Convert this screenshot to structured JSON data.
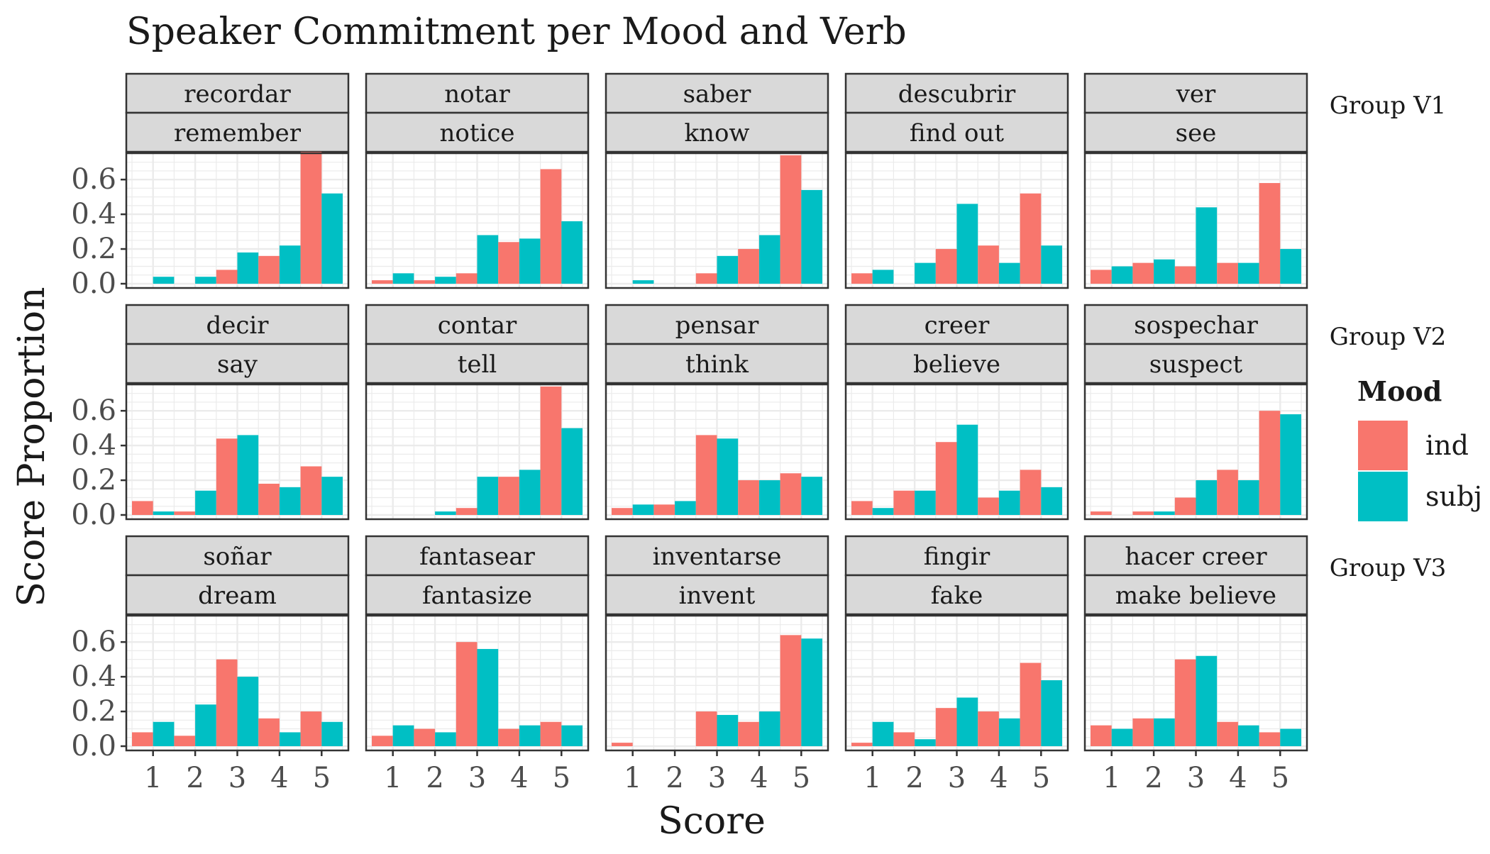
{
  "chart_data": {
    "type": "bar",
    "title": "Speaker Commitment per Mood and Verb",
    "xlabel": "Score",
    "ylabel": "Score Proportion",
    "x_categories": [
      "1",
      "2",
      "3",
      "4",
      "5"
    ],
    "y_ticks": [
      "0.0",
      "0.2",
      "0.4",
      "0.6"
    ],
    "ylim": [
      0,
      0.76
    ],
    "grid": true,
    "legend": {
      "title": "Mood",
      "position": "right",
      "entries": [
        {
          "name": "ind",
          "color": "#F8766D"
        },
        {
          "name": "subj",
          "color": "#00BFC4"
        }
      ]
    },
    "rows": [
      {
        "group": "Group V1",
        "panels": [
          {
            "spanish": "recordar",
            "english": "remember",
            "ind": [
              0.0,
              0.0,
              0.08,
              0.16,
              0.76
            ],
            "subj": [
              0.04,
              0.04,
              0.18,
              0.22,
              0.52
            ]
          },
          {
            "spanish": "notar",
            "english": "notice",
            "ind": [
              0.02,
              0.02,
              0.06,
              0.24,
              0.66
            ],
            "subj": [
              0.06,
              0.04,
              0.28,
              0.26,
              0.36
            ]
          },
          {
            "spanish": "saber",
            "english": "know",
            "ind": [
              0.0,
              0.0,
              0.06,
              0.2,
              0.74
            ],
            "subj": [
              0.02,
              0.0,
              0.16,
              0.28,
              0.54
            ]
          },
          {
            "spanish": "descubrir",
            "english": "find out",
            "ind": [
              0.06,
              0.0,
              0.2,
              0.22,
              0.52
            ],
            "subj": [
              0.08,
              0.12,
              0.46,
              0.12,
              0.22
            ]
          },
          {
            "spanish": "ver",
            "english": "see",
            "ind": [
              0.08,
              0.12,
              0.1,
              0.12,
              0.58
            ],
            "subj": [
              0.1,
              0.14,
              0.44,
              0.12,
              0.2
            ]
          }
        ]
      },
      {
        "group": "Group V2",
        "panels": [
          {
            "spanish": "decir",
            "english": "say",
            "ind": [
              0.08,
              0.02,
              0.44,
              0.18,
              0.28
            ],
            "subj": [
              0.02,
              0.14,
              0.46,
              0.16,
              0.22
            ]
          },
          {
            "spanish": "contar",
            "english": "tell",
            "ind": [
              0.0,
              0.0,
              0.04,
              0.22,
              0.74
            ],
            "subj": [
              0.0,
              0.02,
              0.22,
              0.26,
              0.5
            ]
          },
          {
            "spanish": "pensar",
            "english": "think",
            "ind": [
              0.04,
              0.06,
              0.46,
              0.2,
              0.24
            ],
            "subj": [
              0.06,
              0.08,
              0.44,
              0.2,
              0.22
            ]
          },
          {
            "spanish": "creer",
            "english": "believe",
            "ind": [
              0.08,
              0.14,
              0.42,
              0.1,
              0.26
            ],
            "subj": [
              0.04,
              0.14,
              0.52,
              0.14,
              0.16
            ]
          },
          {
            "spanish": "sospechar",
            "english": "suspect",
            "ind": [
              0.02,
              0.02,
              0.1,
              0.26,
              0.6
            ],
            "subj": [
              0.0,
              0.02,
              0.2,
              0.2,
              0.58
            ]
          }
        ]
      },
      {
        "group": "Group V3",
        "panels": [
          {
            "spanish": "soñar",
            "english": "dream",
            "ind": [
              0.08,
              0.06,
              0.5,
              0.16,
              0.2
            ],
            "subj": [
              0.14,
              0.24,
              0.4,
              0.08,
              0.14
            ]
          },
          {
            "spanish": "fantasear",
            "english": "fantasize",
            "ind": [
              0.06,
              0.1,
              0.6,
              0.1,
              0.14
            ],
            "subj": [
              0.12,
              0.08,
              0.56,
              0.12,
              0.12
            ]
          },
          {
            "spanish": "inventarse",
            "english": "invent",
            "ind": [
              0.02,
              0.0,
              0.2,
              0.14,
              0.64
            ],
            "subj": [
              0.0,
              0.0,
              0.18,
              0.2,
              0.62
            ]
          },
          {
            "spanish": "fingir",
            "english": "fake",
            "ind": [
              0.02,
              0.08,
              0.22,
              0.2,
              0.48
            ],
            "subj": [
              0.14,
              0.04,
              0.28,
              0.16,
              0.38
            ]
          },
          {
            "spanish": "hacer creer",
            "english": "make believe",
            "ind": [
              0.12,
              0.16,
              0.5,
              0.14,
              0.08
            ],
            "subj": [
              0.1,
              0.16,
              0.52,
              0.12,
              0.1
            ]
          }
        ]
      }
    ]
  }
}
